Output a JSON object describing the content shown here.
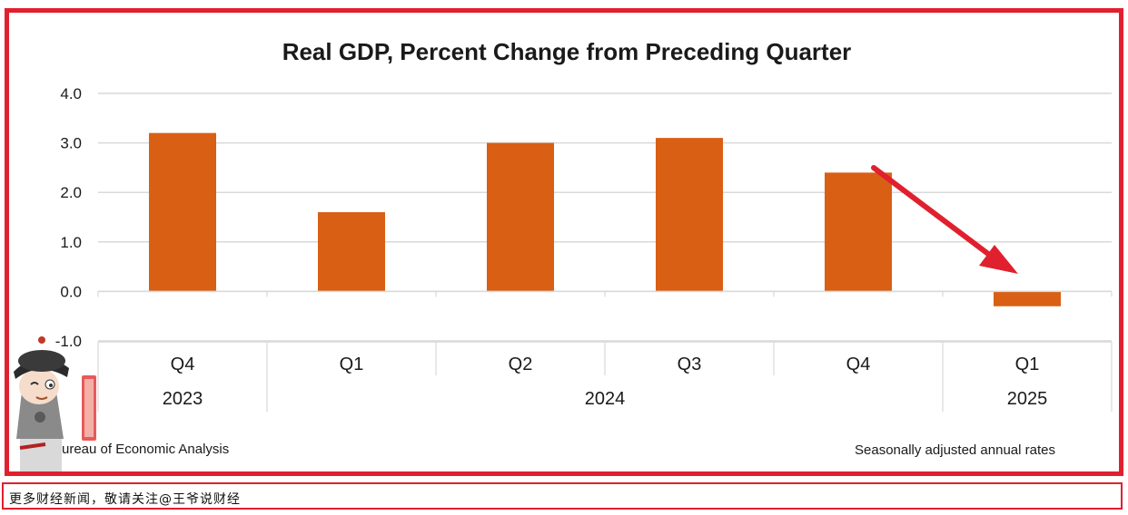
{
  "colors": {
    "bar": "#d95f14",
    "frame": "#e0202e",
    "arrow": "#e0202e",
    "grid": "#d9d9d9",
    "text": "#1a1a1a"
  },
  "chart_data": {
    "type": "bar",
    "title": "Real GDP, Percent Change from Preceding Quarter",
    "categories": [
      "Q4",
      "Q1",
      "Q2",
      "Q3",
      "Q4",
      "Q1"
    ],
    "year_groups": [
      {
        "label": "2023",
        "count": 1
      },
      {
        "label": "2024",
        "count": 4
      },
      {
        "label": "2025",
        "count": 1
      }
    ],
    "values": [
      3.2,
      1.6,
      3.0,
      3.1,
      2.4,
      -0.3
    ],
    "ylim": [
      -1.0,
      4.0
    ],
    "yticks": [
      "4.0",
      "3.0",
      "2.0",
      "1.0",
      "0.0",
      "-1.0"
    ],
    "grid": true,
    "source": "Bureau of Economic Analysis",
    "note": "Seasonally adjusted annual rates"
  },
  "footer": {
    "text": "更多财经新闻，敬请关注@王爷说财经"
  }
}
